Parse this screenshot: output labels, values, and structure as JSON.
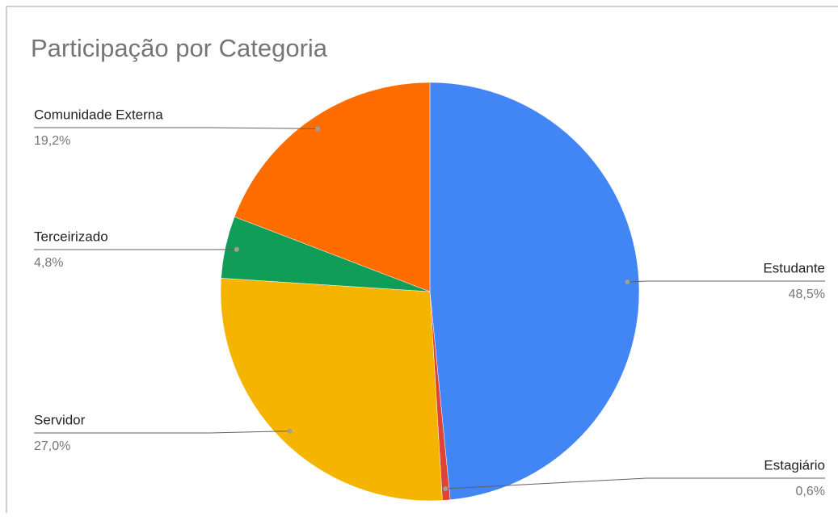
{
  "chart_data": {
    "type": "pie",
    "title": "Participação por Categoria",
    "categories": [
      "Estudante",
      "Estagiário",
      "Servidor",
      "Terceirizado",
      "Comunidade Externa"
    ],
    "values": [
      48.5,
      0.6,
      27.0,
      4.8,
      19.2
    ],
    "value_labels": [
      "48,5%",
      "0,6%",
      "27,0%",
      "4,8%",
      "19,2%"
    ],
    "colors": [
      "#4285f4",
      "#db4437",
      "#f4b400",
      "#0f9d58",
      "#ff6d00"
    ]
  }
}
